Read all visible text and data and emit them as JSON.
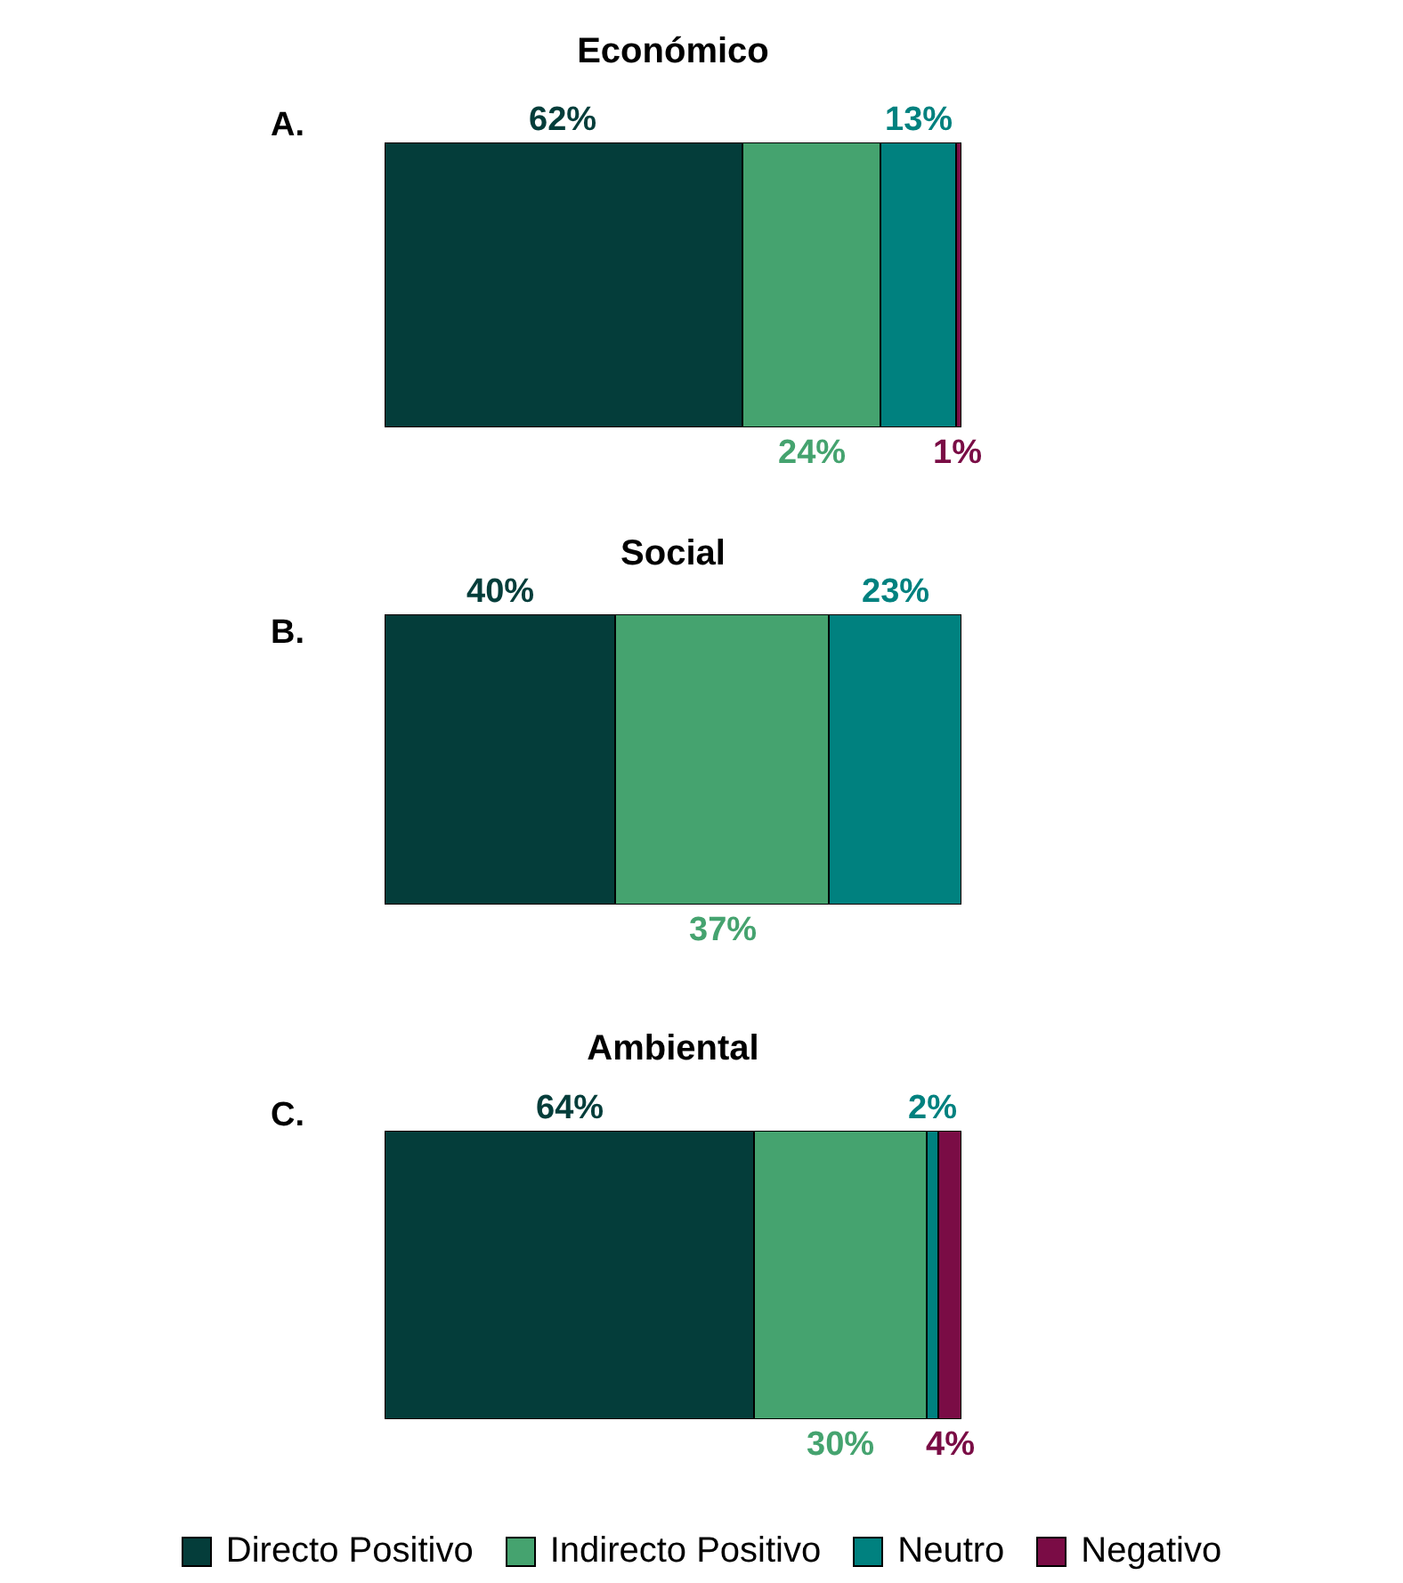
{
  "chart_data": [
    {
      "type": "bar",
      "title": "Económico",
      "annotations": [
        "A."
      ],
      "orientation": "horizontal",
      "stacked": true,
      "categories": [
        null
      ],
      "xlim": [
        0,
        100
      ],
      "tick_labels": false,
      "legend": false,
      "series": [
        {
          "color": "#043d3a",
          "values": [
            62
          ],
          "value_labels": [
            "62%"
          ]
        },
        {
          "color": "#45a36f",
          "values": [
            24
          ],
          "value_labels": [
            "24%"
          ]
        },
        {
          "color": "#00817f",
          "values": [
            13
          ],
          "value_labels": [
            "13%"
          ]
        },
        {
          "color": "#7a0c45",
          "values": [
            1
          ],
          "value_labels": [
            "1%"
          ]
        }
      ]
    },
    {
      "type": "bar",
      "title": "Social",
      "annotations": [
        "B."
      ],
      "orientation": "horizontal",
      "stacked": true,
      "categories": [
        null
      ],
      "xlim": [
        0,
        100
      ],
      "tick_labels": false,
      "legend": false,
      "series": [
        {
          "color": "#043d3a",
          "values": [
            40
          ],
          "value_labels": [
            "40%"
          ]
        },
        {
          "color": "#45a36f",
          "values": [
            37
          ],
          "value_labels": [
            "37%"
          ]
        },
        {
          "color": "#00817f",
          "values": [
            23
          ],
          "value_labels": [
            "23%"
          ]
        }
      ]
    },
    {
      "type": "bar",
      "title": "Ambiental",
      "annotations": [
        "C."
      ],
      "orientation": "horizontal",
      "stacked": true,
      "categories": [
        null
      ],
      "xlim": [
        0,
        100
      ],
      "tick_labels": false,
      "legend": "bottom",
      "series": [
        {
          "name": "Directo Positivo",
          "color": "#043d3a",
          "values": [
            64
          ],
          "value_labels": [
            "64%"
          ]
        },
        {
          "name": "Indirecto Positivo",
          "color": "#45a36f",
          "values": [
            30
          ],
          "value_labels": [
            "30%"
          ]
        },
        {
          "name": "Neutro",
          "color": "#00817f",
          "values": [
            2
          ],
          "value_labels": [
            "2%"
          ]
        },
        {
          "name": "Negativo",
          "color": "#7a0c45",
          "values": [
            4
          ],
          "value_labels": [
            "4%"
          ]
        }
      ]
    }
  ]
}
